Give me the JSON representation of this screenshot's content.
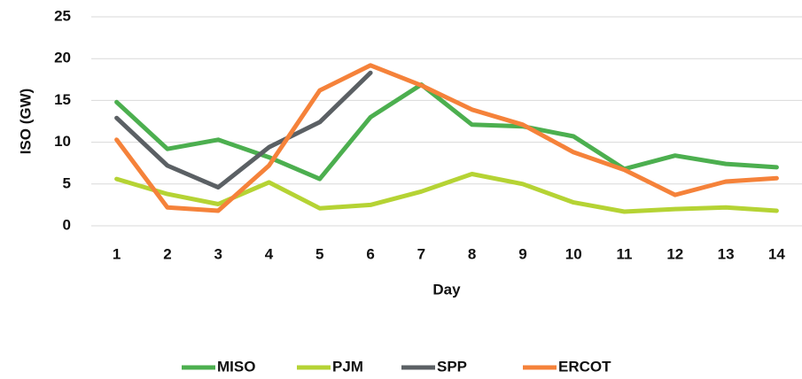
{
  "chart_data": {
    "type": "line",
    "x_label": "Day",
    "y_label": "ISO (GW)",
    "categories": [
      "1",
      "2",
      "3",
      "4",
      "5",
      "6",
      "7",
      "8",
      "9",
      "10",
      "11",
      "12",
      "13",
      "14"
    ],
    "series": [
      {
        "name": "MISO",
        "color": "#4caf4f",
        "values": [
          14.8,
          9.2,
          10.3,
          8.2,
          5.6,
          13.0,
          16.9,
          12.1,
          11.9,
          10.7,
          6.8,
          8.4,
          7.4,
          7.0
        ]
      },
      {
        "name": "PJM",
        "color": "#b5d334",
        "values": [
          5.6,
          3.8,
          2.6,
          5.2,
          2.1,
          2.5,
          4.1,
          6.2,
          5.0,
          2.8,
          1.7,
          2.0,
          2.2,
          1.8
        ]
      },
      {
        "name": "SPP",
        "color": "#5b6064",
        "values": [
          12.9,
          7.2,
          4.6,
          9.4,
          12.4,
          18.3,
          null,
          null,
          null,
          null,
          null,
          null,
          null,
          null
        ]
      },
      {
        "name": "ERCOT",
        "color": "#f5823a",
        "values": [
          10.3,
          2.2,
          1.8,
          7.2,
          16.2,
          19.2,
          16.8,
          13.9,
          12.1,
          8.8,
          6.7,
          3.7,
          5.3,
          5.7
        ]
      }
    ],
    "ylim": [
      0,
      25
    ],
    "yticks": [
      0,
      5,
      10,
      15,
      20,
      25
    ],
    "grid": true,
    "legend": "bottom"
  }
}
